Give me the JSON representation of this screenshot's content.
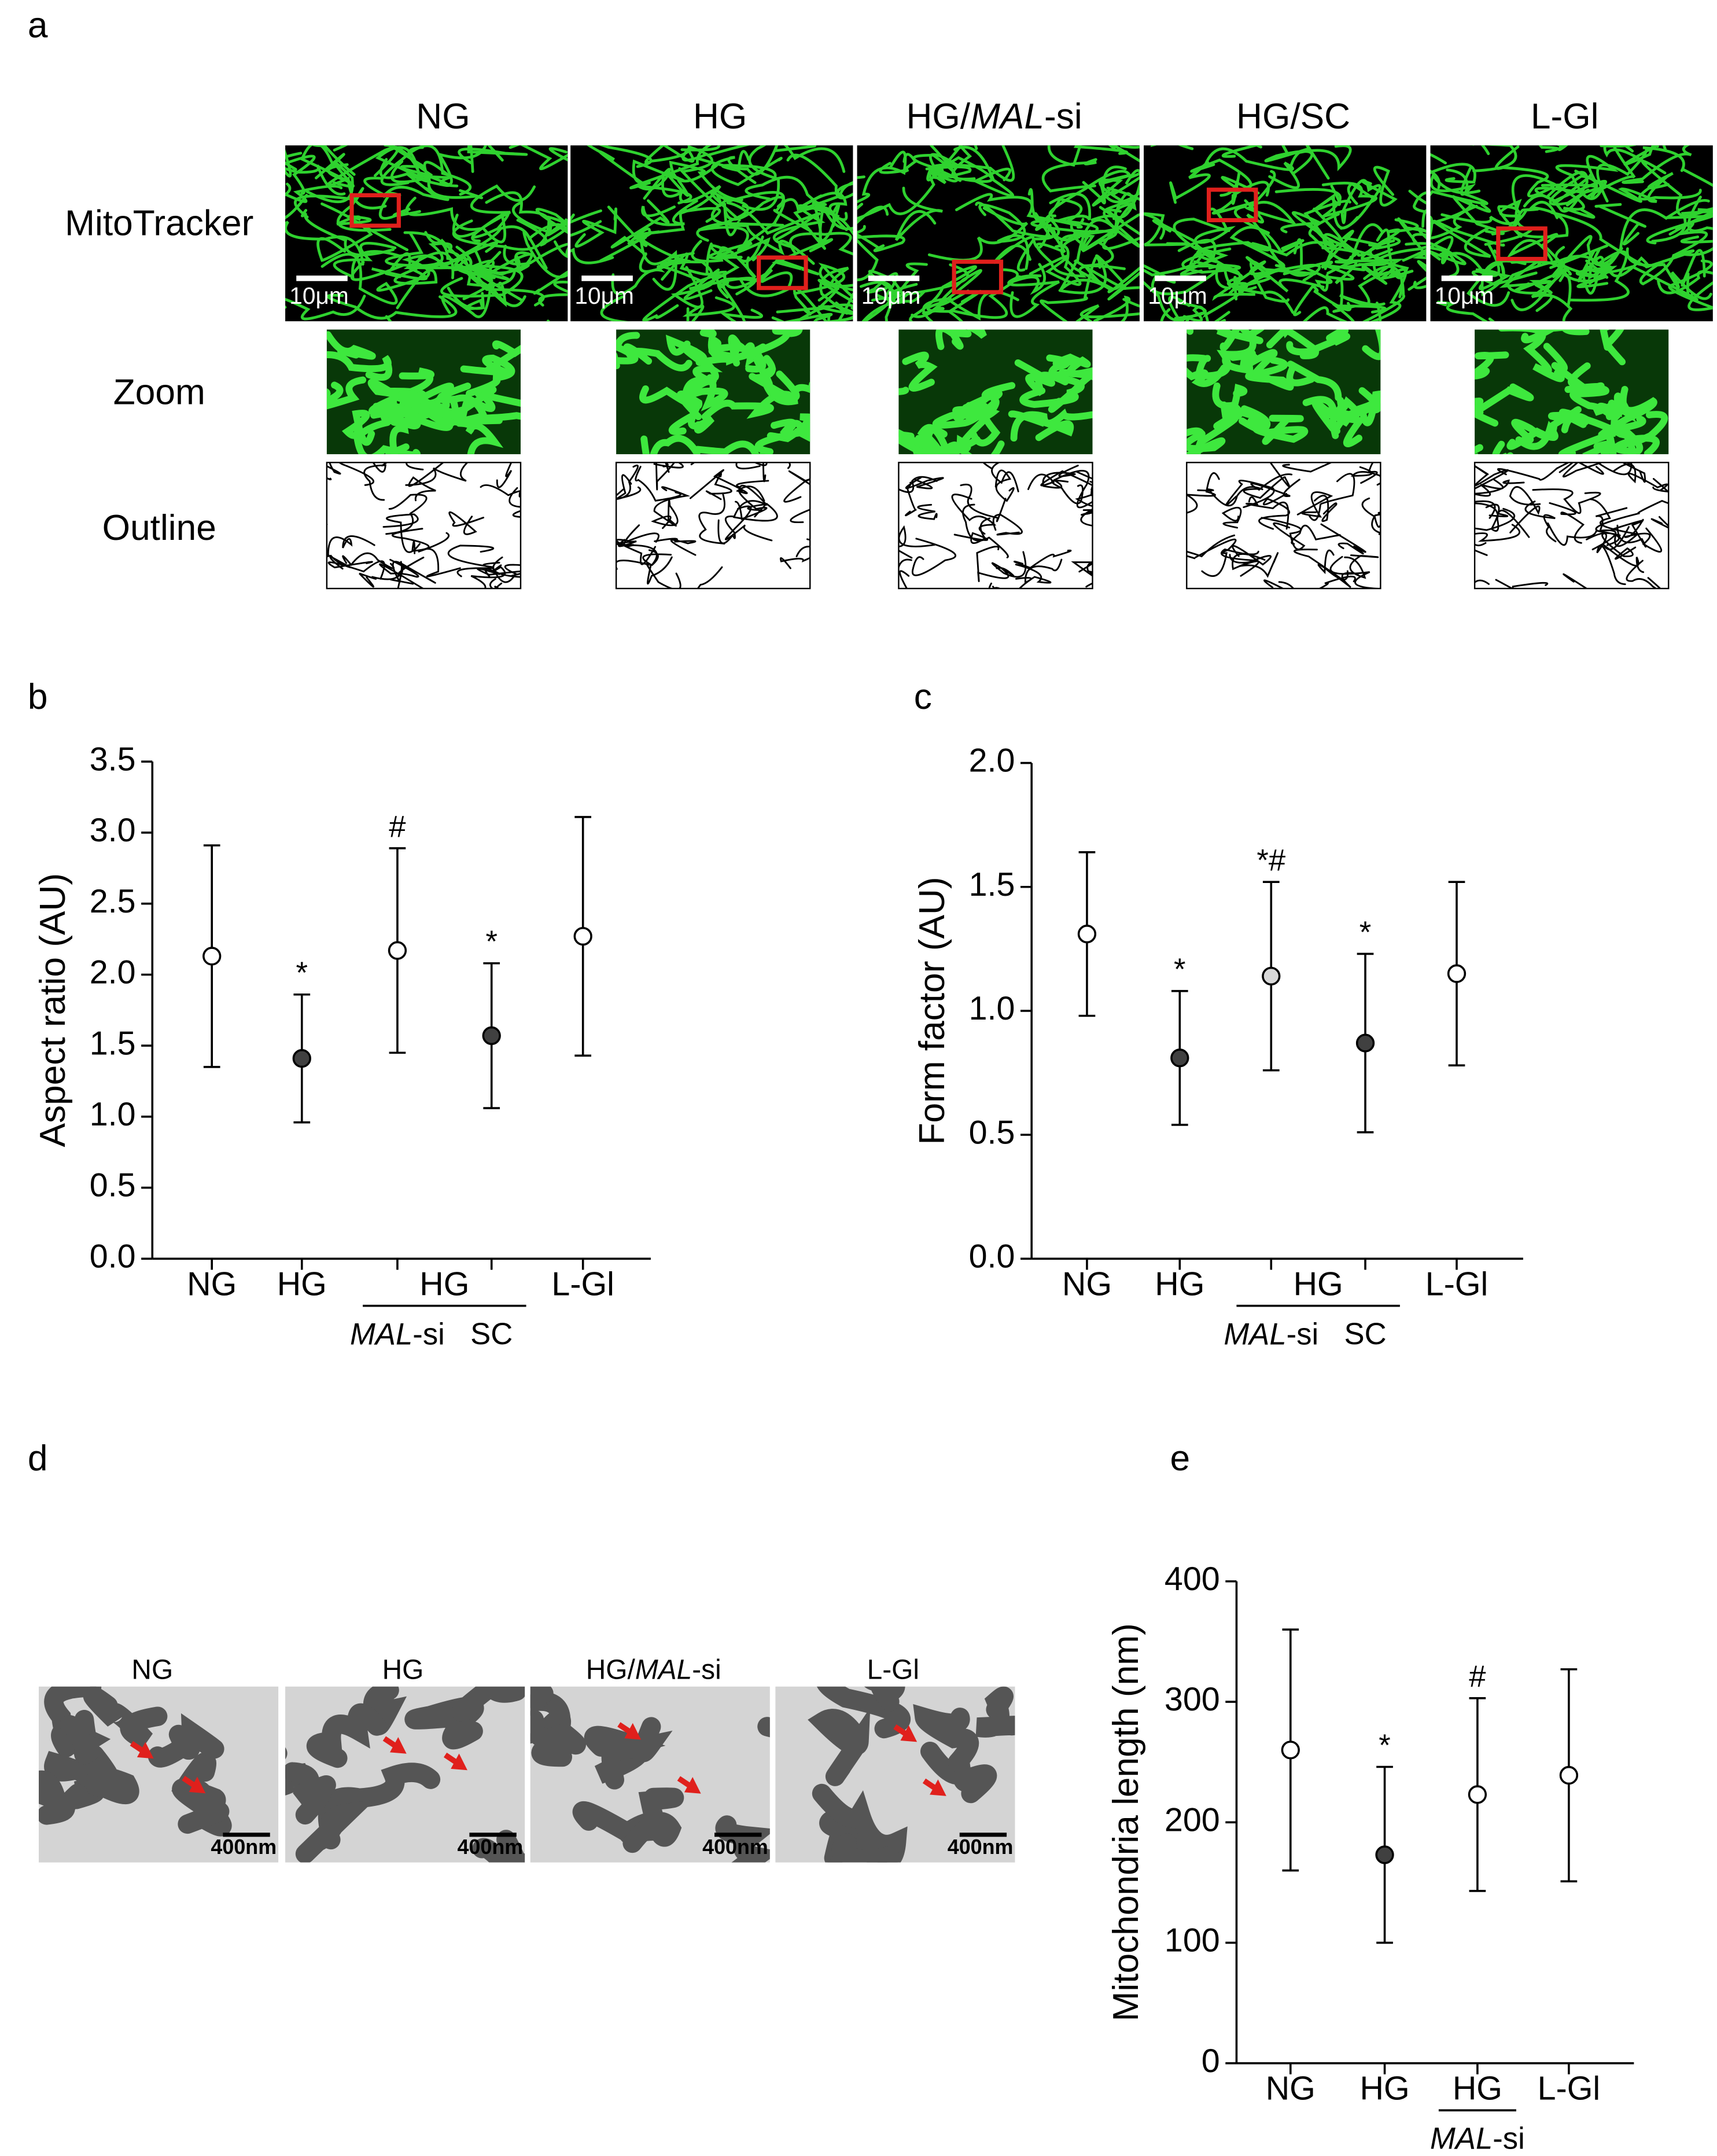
{
  "panel_a": {
    "panel": "a",
    "columns": [
      {
        "before": "NG"
      },
      {
        "before": "HG"
      },
      {
        "before": "HG/",
        "italic": "MAL",
        "after": "-si"
      },
      {
        "before": "HG/SC"
      },
      {
        "before": "L-Gl"
      }
    ],
    "rows": [
      "MitoTracker",
      "Zoom",
      "Outline"
    ],
    "scale_label": "10μm"
  },
  "panel_d": {
    "panel": "d",
    "columns": [
      {
        "before": "NG"
      },
      {
        "before": "HG"
      },
      {
        "before": "HG/",
        "italic": "MAL",
        "after": "-si"
      },
      {
        "before": "L-Gl"
      }
    ],
    "scale_label": "400nm"
  },
  "chart_data": [
    {
      "type": "errorbar",
      "panel": "b",
      "y_label": "Aspect ratio (AU)",
      "categories": [
        "NG",
        "HG",
        null,
        null,
        "L-Gl"
      ],
      "group_label": "HG",
      "sub_labels": [
        null,
        null,
        {
          "italic": "MAL",
          "after": "-si"
        },
        "SC",
        null
      ],
      "values": [
        2.13,
        1.41,
        2.17,
        1.57,
        2.27
      ],
      "errors": [
        0.78,
        0.45,
        0.72,
        0.51,
        0.84
      ],
      "marker_colors": [
        "#ffffff",
        "#404040",
        "#ffffff",
        "#404040",
        "#ffffff"
      ],
      "annotations": [
        null,
        "*",
        "#",
        "*",
        null
      ],
      "ylim": [
        0,
        3.5
      ],
      "yticks": [
        {
          "value": 0,
          "label": "0.0"
        },
        0.5,
        {
          "value": 1,
          "label": "1.0"
        },
        1.5,
        {
          "value": 2,
          "label": "2.0"
        },
        2.5,
        {
          "value": 3,
          "label": "3.0"
        },
        3.5
      ]
    },
    {
      "type": "errorbar",
      "panel": "c",
      "y_label": "Form factor (AU)",
      "categories": [
        "NG",
        "HG",
        null,
        null,
        "L-Gl"
      ],
      "group_label": "HG",
      "sub_labels": [
        null,
        null,
        {
          "italic": "MAL",
          "after": "-si"
        },
        "SC",
        null
      ],
      "values": [
        1.31,
        0.81,
        1.14,
        0.87,
        1.15
      ],
      "errors": [
        0.33,
        0.27,
        0.38,
        0.36,
        0.37
      ],
      "marker_colors": [
        "#ffffff",
        "#404040",
        "#d8d8d8",
        "#404040",
        "#ffffff"
      ],
      "annotations": [
        null,
        "*",
        "*#",
        "*",
        null
      ],
      "ylim": [
        0,
        2
      ],
      "yticks": [
        {
          "value": 0,
          "label": "0.0"
        },
        0.5,
        {
          "value": 1,
          "label": "1.0"
        },
        1.5,
        {
          "value": 2,
          "label": "2.0"
        }
      ]
    },
    {
      "type": "errorbar",
      "panel": "e",
      "y_label": "Mitochondria length (nm)",
      "categories": [
        "NG",
        "HG",
        null,
        "L-Gl"
      ],
      "group_label": "HG",
      "sub_labels": [
        null,
        null,
        {
          "italic": "MAL",
          "after": "-si"
        },
        null
      ],
      "values": [
        260,
        173,
        223,
        239
      ],
      "errors": [
        100,
        73,
        80,
        88
      ],
      "marker_colors": [
        "#ffffff",
        "#404040",
        "#ffffff",
        "#ffffff"
      ],
      "annotations": [
        null,
        "*",
        "#",
        null
      ],
      "ylim": [
        0,
        400
      ],
      "yticks": [
        0,
        100,
        200,
        300,
        400
      ]
    }
  ]
}
